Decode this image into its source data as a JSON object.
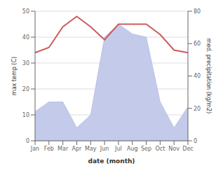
{
  "chart_data": {
    "type": "line",
    "x_label": "date (month)",
    "y_label": "max temp (C)",
    "y2_label": "med. precipitation (kg/m2)",
    "categories": [
      "Jan",
      "Feb",
      "Mar",
      "Apr",
      "May",
      "Jun",
      "Jul",
      "Aug",
      "Sep",
      "Oct",
      "Nov",
      "Dec"
    ],
    "series": [
      {
        "type": "area",
        "axis": "y2",
        "color": "#bcc4e8",
        "values": [
          18,
          24,
          24,
          8,
          16,
          64,
          72,
          66,
          64,
          24,
          8,
          21
        ]
      },
      {
        "type": "line",
        "axis": "y",
        "color": "#cd5c5c",
        "values": [
          34,
          36,
          44,
          48,
          44,
          39,
          45,
          45,
          45,
          41,
          35,
          34
        ]
      }
    ],
    "ylim": [
      0,
      50
    ],
    "yticks": [
      0,
      10,
      20,
      30,
      40,
      50
    ],
    "y2lim": [
      0,
      80
    ],
    "y2ticks": [
      0,
      20,
      40,
      60,
      80
    ],
    "grid": true
  }
}
